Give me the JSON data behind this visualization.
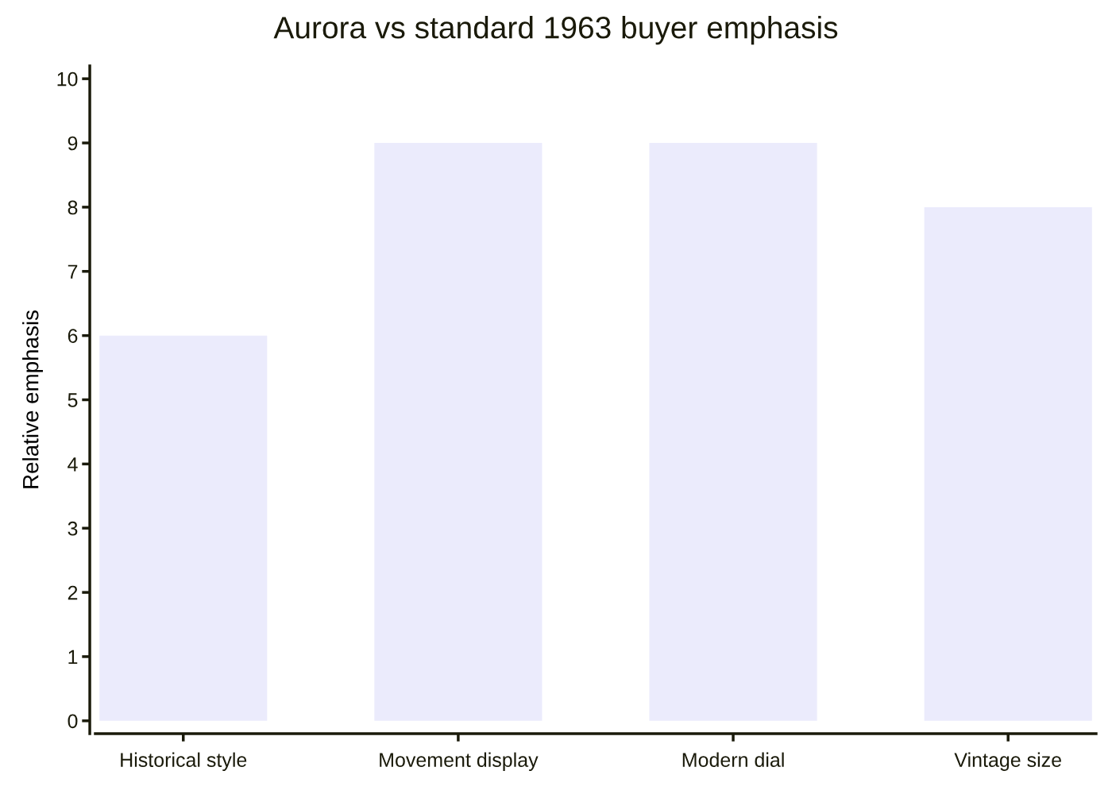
{
  "chart_data": {
    "type": "bar",
    "title": "Aurora vs standard 1963 buyer emphasis",
    "ylabel": "Relative emphasis",
    "categories": [
      "Historical style",
      "Movement display",
      "Modern dial",
      "Vintage size"
    ],
    "values": [
      6,
      9,
      9,
      8
    ],
    "color": "#ebebfc",
    "ylim": [
      -0.2,
      10.2
    ],
    "yticks": [
      0,
      1,
      2,
      3,
      4,
      5,
      6,
      7,
      8,
      9,
      10
    ],
    "grid": false,
    "legend": false
  }
}
